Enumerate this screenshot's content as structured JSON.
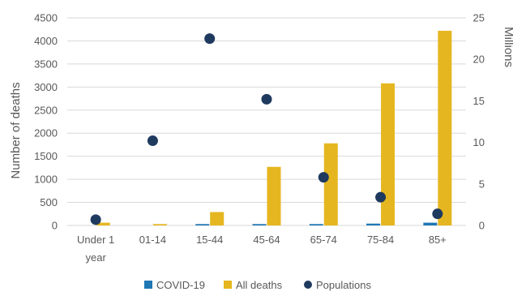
{
  "colors": {
    "covid": "#1F77B4",
    "all_deaths": "#E5B61F",
    "populations": "#1F3A5F",
    "text": "#595959",
    "grid": "#D9D9D9",
    "axis": "#D9D9D9"
  },
  "chart_data": {
    "type": "bar",
    "title": "",
    "categories": [
      "Under 1\nyear",
      "01-14",
      "15-44",
      "45-64",
      "65-74",
      "75-84",
      "85+"
    ],
    "ylabel": "Number of deaths",
    "y2label": "Millions",
    "ylim": [
      0,
      4500
    ],
    "y2lim": [
      0,
      25
    ],
    "yticks": [
      0,
      500,
      1000,
      1500,
      2000,
      2500,
      3000,
      3500,
      4000,
      4500
    ],
    "y2ticks": [
      0,
      5,
      10,
      15,
      20,
      25
    ],
    "grid": true,
    "legend_position": "bottom",
    "series": [
      {
        "name": "COVID-19",
        "kind": "bar",
        "axis": "left",
        "values": [
          0,
          0,
          30,
          30,
          30,
          40,
          60
        ]
      },
      {
        "name": "All deaths",
        "kind": "bar",
        "axis": "left",
        "values": [
          60,
          30,
          290,
          1270,
          1780,
          3080,
          4220
        ]
      },
      {
        "name": "Populations",
        "kind": "scatter",
        "axis": "right",
        "values": [
          0.7,
          10.2,
          22.5,
          15.2,
          5.8,
          3.4,
          1.4
        ]
      }
    ]
  }
}
